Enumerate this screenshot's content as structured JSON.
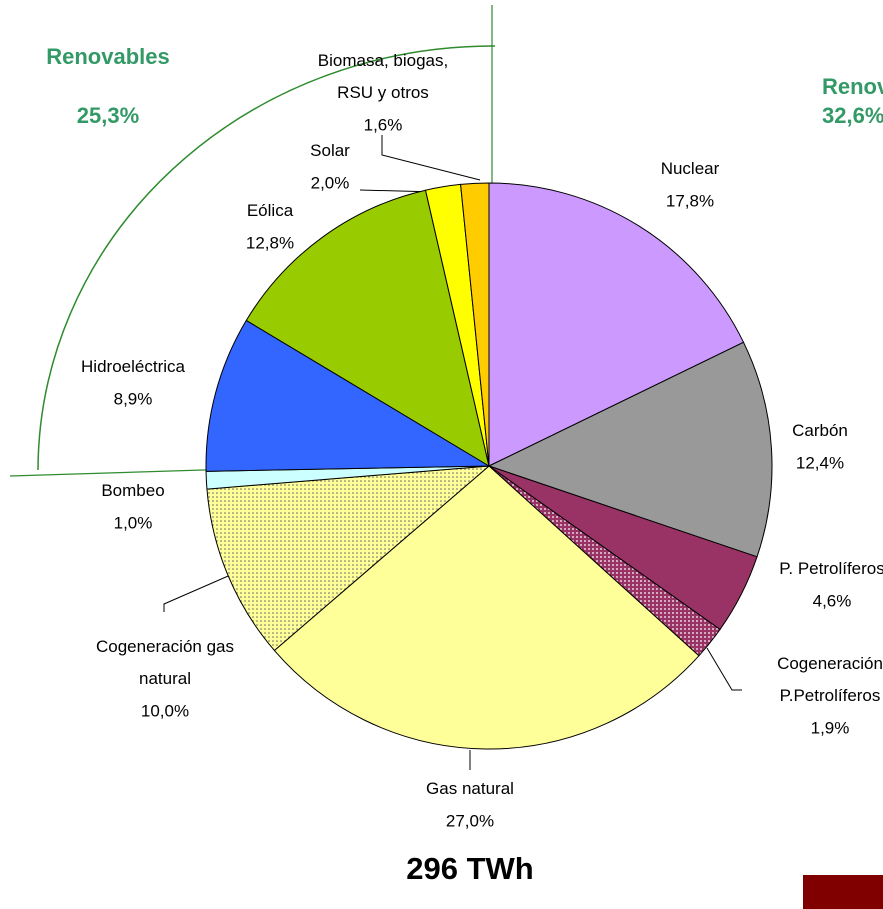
{
  "chart_data": {
    "type": "pie",
    "categories": [
      "Nuclear",
      "Carbón",
      "P. Petrolíferos",
      "Cogeneración\nP.Petrolíferos",
      "Gas natural",
      "Cogeneración gas\nnatural",
      "Bombeo",
      "Hidroeléctrica",
      "Eólica",
      "Solar",
      "Biomasa, biogas,\nRSU y otros"
    ],
    "values": [
      17.8,
      12.4,
      4.6,
      1.9,
      27.0,
      10.0,
      1.0,
      8.9,
      12.8,
      2.0,
      1.6
    ],
    "value_labels": [
      "17,8%",
      "12,4%",
      "4,6%",
      "1,9%",
      "27,0%",
      "10,0%",
      "1,0%",
      "8,9%",
      "12,8%",
      "2,0%",
      "1,6%"
    ],
    "colors": [
      "#cc99ff",
      "#999999",
      "#993366",
      "#993366",
      "#ffff99",
      "#ffff99",
      "#ccffff",
      "#3366ff",
      "#99cc00",
      "#ffff00",
      "#ffcc00"
    ],
    "dotted": [
      false,
      false,
      false,
      true,
      false,
      true,
      false,
      false,
      false,
      false,
      false
    ],
    "annotations": [
      {
        "label": "Renovables",
        "value_label": "25,3%"
      },
      {
        "label": "Renovables",
        "value_label": "32,6%"
      }
    ],
    "total": "296 TWh"
  }
}
